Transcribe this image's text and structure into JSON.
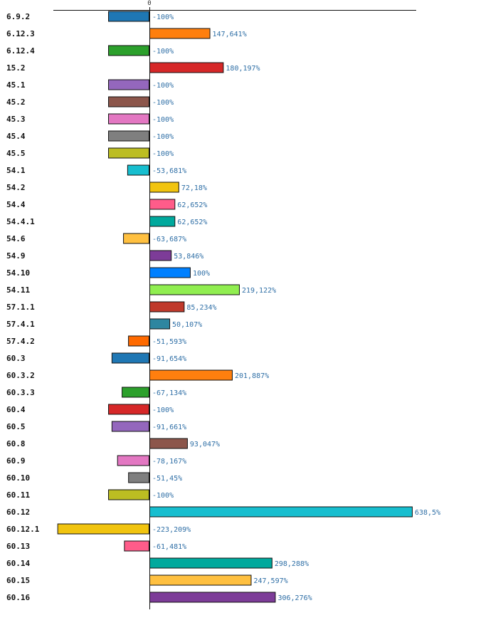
{
  "chart_data": {
    "type": "bar",
    "orientation": "horizontal",
    "x_ticks": [
      "0"
    ],
    "value_suffix": "%",
    "categories": [
      "6.9.2",
      "6.12.3",
      "6.12.4",
      "15.2",
      "45.1",
      "45.2",
      "45.3",
      "45.4",
      "45.5",
      "54.1",
      "54.2",
      "54.4",
      "54.4.1",
      "54.6",
      "54.9",
      "54.10",
      "54.11",
      "57.1.1",
      "57.4.1",
      "57.4.2",
      "60.3",
      "60.3.2",
      "60.3.3",
      "60.4",
      "60.5",
      "60.8",
      "60.9",
      "60.10",
      "60.11",
      "60.12",
      "60.12.1",
      "60.13",
      "60.14",
      "60.15",
      "60.16"
    ],
    "values": [
      -100,
      147.641,
      -100,
      180.197,
      -100,
      -100,
      -100,
      -100,
      -100,
      -53.681,
      72.18,
      62.652,
      62.652,
      -63.687,
      53.846,
      100,
      219.122,
      85.234,
      50.107,
      -51.593,
      -91.654,
      201.887,
      -67.134,
      -100,
      -91.661,
      93.047,
      -78.167,
      -51.45,
      -100,
      638.5,
      -223.209,
      -61.481,
      298.288,
      247.597,
      306.276
    ],
    "value_labels": [
      "-100%",
      "147,641%",
      "-100%",
      "180,197%",
      "-100%",
      "-100%",
      "-100%",
      "-100%",
      "-100%",
      "-53,681%",
      "72,18%",
      "62,652%",
      "62,652%",
      "-63,687%",
      "53,846%",
      "100%",
      "219,122%",
      "85,234%",
      "50,107%",
      "-51,593%",
      "-91,654%",
      "201,887%",
      "-67,134%",
      "-100%",
      "-91,661%",
      "93,047%",
      "-78,167%",
      "-51,45%",
      "-100%",
      "638,5%",
      "-223,209%",
      "-61,481%",
      "298,288%",
      "247,597%",
      "306,276%"
    ],
    "colors": [
      "#1f77b4",
      "#ff7f0e",
      "#2ca02c",
      "#d62728",
      "#9467bd",
      "#8c564b",
      "#e377c2",
      "#7f7f7f",
      "#bcbd22",
      "#17becf",
      "#f1c40f",
      "#ff5c8a",
      "#00a99d",
      "#ffc040",
      "#7d3c98",
      "#0080ff",
      "#90ee50",
      "#c0392b",
      "#2e86a0",
      "#ff6a00",
      "#1f77b4",
      "#ff7f0e",
      "#2ca02c",
      "#d62728",
      "#9467bd",
      "#8c564b",
      "#e377c2",
      "#7f7f7f",
      "#bcbd22",
      "#17becf",
      "#f1c40f",
      "#ff5c8a",
      "#00a99d",
      "#ffc040",
      "#7d3c98"
    ],
    "grid": false,
    "legend": "none"
  }
}
